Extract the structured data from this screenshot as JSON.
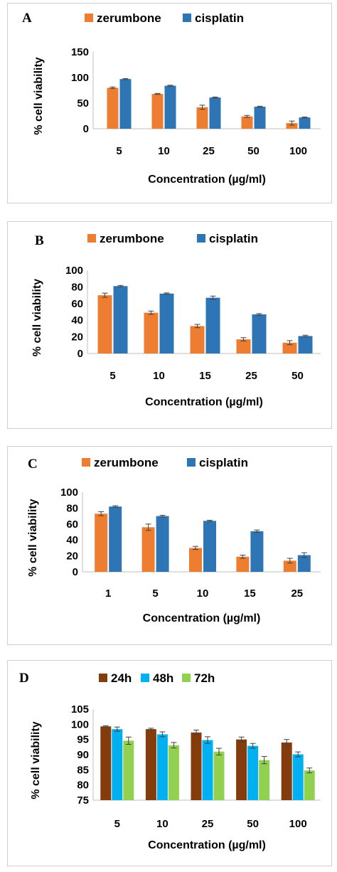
{
  "chart_data": [
    {
      "panel_label": "A",
      "type": "bar",
      "categories": [
        "5",
        "10",
        "25",
        "50",
        "100"
      ],
      "series": [
        {
          "name": "zerumbone",
          "color": "#ED7D31",
          "values": [
            80,
            68,
            42,
            24,
            11
          ],
          "errors": [
            1.5,
            1,
            4,
            2,
            4
          ]
        },
        {
          "name": "cisplatin",
          "color": "#2E75B6",
          "values": [
            97,
            84,
            61,
            43,
            22
          ],
          "errors": [
            1,
            1,
            1,
            1,
            1
          ]
        }
      ],
      "ylim": [
        0,
        150
      ],
      "yticks": [
        "0",
        "50",
        "100",
        "150"
      ],
      "xlabel": "Concentration  (µg/ml)",
      "ylabel": "% cell viability"
    },
    {
      "panel_label": "B",
      "type": "bar",
      "categories": [
        "5",
        "10",
        "15",
        "25",
        "50"
      ],
      "series": [
        {
          "name": "zerumbone",
          "color": "#ED7D31",
          "values": [
            70,
            49,
            33,
            17,
            13
          ],
          "errors": [
            2.5,
            2,
            2,
            2,
            2.5
          ]
        },
        {
          "name": "cisplatin",
          "color": "#2E75B6",
          "values": [
            81,
            72,
            67,
            47,
            21
          ],
          "errors": [
            0.8,
            0.8,
            2,
            1,
            1
          ]
        }
      ],
      "ylim": [
        0,
        100
      ],
      "yticks": [
        "0",
        "20",
        "40",
        "60",
        "80",
        "100"
      ],
      "xlabel": "Concentration (µg/ml)",
      "ylabel": "% cell viability"
    },
    {
      "panel_label": "C",
      "type": "bar",
      "categories": [
        "1",
        "5",
        "10",
        "15",
        "25"
      ],
      "series": [
        {
          "name": "zerumbone",
          "color": "#ED7D31",
          "values": [
            73,
            56,
            30,
            19,
            14
          ],
          "errors": [
            2.5,
            4,
            2,
            2,
            3
          ]
        },
        {
          "name": "cisplatin",
          "color": "#2E75B6",
          "values": [
            82,
            70,
            64,
            51,
            21
          ],
          "errors": [
            1,
            1,
            0.8,
            1.5,
            3
          ]
        }
      ],
      "ylim": [
        0,
        100
      ],
      "yticks": [
        "0",
        "20",
        "40",
        "60",
        "80",
        "100"
      ],
      "xlabel": "Concentration (µg/ml)",
      "ylabel": "% cell viability"
    },
    {
      "panel_label": "D",
      "type": "bar",
      "categories": [
        "5",
        "10",
        "25",
        "50",
        "100"
      ],
      "series": [
        {
          "name": "24h",
          "color": "#843C0C",
          "values": [
            99.3,
            98.4,
            97.3,
            95.0,
            94.0
          ],
          "errors": [
            0.2,
            0.3,
            0.8,
            0.8,
            1.0
          ]
        },
        {
          "name": "48h",
          "color": "#00B0F0",
          "values": [
            98.4,
            96.7,
            94.8,
            92.9,
            90.1
          ],
          "errors": [
            0.7,
            0.8,
            1.1,
            0.8,
            0.8
          ]
        },
        {
          "name": "72h",
          "color": "#92D050",
          "values": [
            94.6,
            93.1,
            91.0,
            88.2,
            84.8
          ],
          "errors": [
            1.2,
            0.9,
            1.1,
            1.2,
            0.8
          ]
        }
      ],
      "ylim": [
        75,
        105
      ],
      "yticks": [
        "75",
        "80",
        "85",
        "90",
        "95",
        "100",
        "105"
      ],
      "xlabel": "Concentration (µg/ml)",
      "ylabel": "% cell viability"
    }
  ]
}
